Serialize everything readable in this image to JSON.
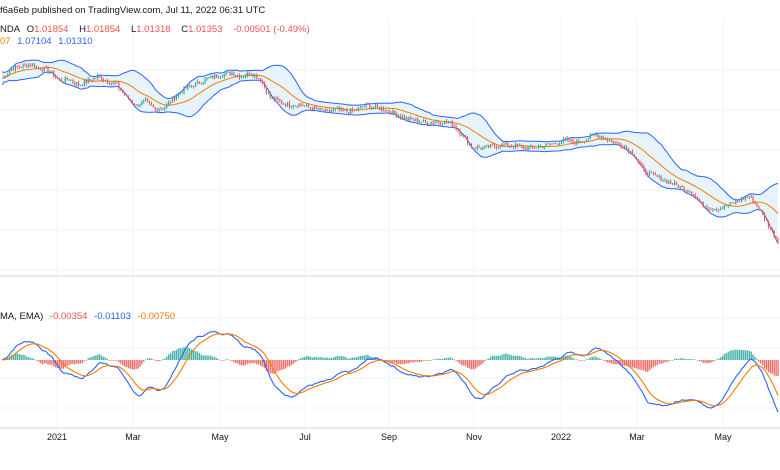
{
  "publisher_line": "f6a6eb published on TradingView.com, Jul 11, 2022 06:31 UTC",
  "symbol_fragment": "NDA",
  "ohlc": {
    "open_label": "O",
    "open": "1.01854",
    "high_label": "H",
    "high": "1.01854",
    "low_label": "L",
    "low": "1.01318",
    "close_label": "C",
    "close": "1.01353",
    "change": "-0.00501 (-0.49%)"
  },
  "bollinger": {
    "basis": "07",
    "upper": "1.07104",
    "lower": "1.01310"
  },
  "macd_header": {
    "params_fragment": "MA, EMA)",
    "histogram": "-0.00354",
    "macd": "-0.01103",
    "signal": "-0.00750"
  },
  "colors": {
    "up": "#26a69a",
    "down": "#ef5350",
    "bands": "#2962ff",
    "basis": "#f57c00",
    "band_fill": "#e3f2fd",
    "grid": "#f0f3fa",
    "divider": "#d1d4dc"
  },
  "chart_data": [
    {
      "type": "candlestick",
      "overlay": "bollinger_bands",
      "x_tick_labels": [
        "2021",
        "Mar",
        "May",
        "Jul",
        "Sep",
        "Nov",
        "2022",
        "Mar",
        "May"
      ],
      "close_path": [
        1.213,
        1.225,
        1.228,
        1.23,
        1.225,
        1.222,
        1.21,
        1.212,
        1.205,
        1.21,
        1.215,
        1.21,
        1.205,
        1.19,
        1.18,
        1.185,
        1.175,
        1.178,
        1.19,
        1.2,
        1.205,
        1.21,
        1.215,
        1.218,
        1.22,
        1.215,
        1.22,
        1.212,
        1.19,
        1.185,
        1.18,
        1.182,
        1.178,
        1.175,
        1.172,
        1.175,
        1.172,
        1.175,
        1.18,
        1.178,
        1.175,
        1.17,
        1.165,
        1.162,
        1.16,
        1.16,
        1.16,
        1.158,
        1.145,
        1.13,
        1.128,
        1.13,
        1.132,
        1.132,
        1.13,
        1.128,
        1.13,
        1.132,
        1.135,
        1.138,
        1.135,
        1.14,
        1.145,
        1.14,
        1.135,
        1.13,
        1.12,
        1.1,
        1.095,
        1.09,
        1.085,
        1.08,
        1.075,
        1.06,
        1.055,
        1.055,
        1.06,
        1.065,
        1.07,
        1.055,
        1.035,
        1.015
      ]
    },
    {
      "type": "macd",
      "histogram_color_up": "#26a69a",
      "histogram_color_down": "#ef5350",
      "macd_color": "#2962ff",
      "signal_color": "#f57c00"
    }
  ]
}
